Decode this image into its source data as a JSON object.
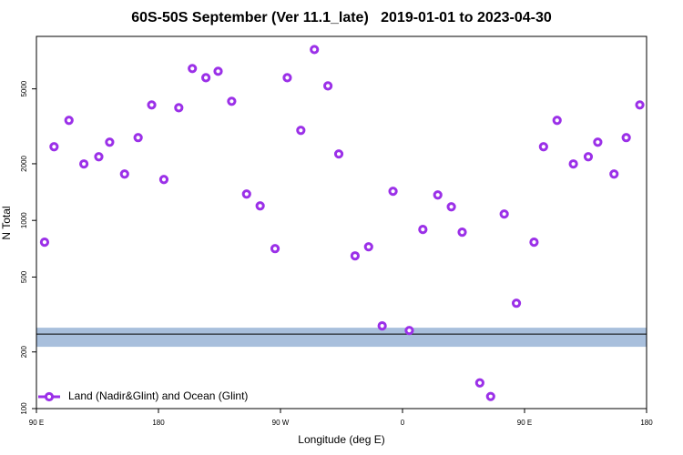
{
  "chart_data": {
    "type": "scatter",
    "title": "60S-50S September (Ver 11.1_late)   2019-01-01 to 2023-04-30",
    "x_label": "Longitude (deg E)",
    "y_label": "N Total",
    "log_y": true,
    "xlim": [
      90,
      540
    ],
    "xticks": [
      {
        "value": 90,
        "label": "90 E"
      },
      {
        "value": 180,
        "label": "180"
      },
      {
        "value": 270,
        "label": "90 W"
      },
      {
        "value": 360,
        "label": "0"
      },
      {
        "value": 450,
        "label": "90 E"
      },
      {
        "value": 540,
        "label": "180"
      }
    ],
    "ylim": [
      100,
      9500
    ],
    "yticks": [
      100,
      200,
      500,
      1000,
      2000,
      5000
    ],
    "band": [
      213,
      269
    ],
    "reference_line": 249,
    "band_color": "#a8bfdc",
    "legend_position": "lower left",
    "series": [
      {
        "name": "Land (Nadir&Glint) and Ocean (Glint)",
        "color": "#9b30e8",
        "x": [
          96,
          103,
          114,
          125,
          136,
          144,
          155,
          165,
          175,
          184,
          195,
          205,
          215,
          224,
          234,
          245,
          255,
          266,
          275,
          285,
          295,
          305,
          313,
          325,
          335,
          345,
          353,
          365,
          375,
          386,
          396,
          404,
          417,
          425,
          435,
          444,
          457,
          464,
          474,
          486,
          497,
          504,
          516,
          525,
          535
        ],
        "values": [
          766,
          2463,
          3400,
          1995,
          2178,
          2603,
          1763,
          2754,
          4108,
          1650,
          3971,
          6412,
          5730,
          6200,
          4295,
          1380,
          1194,
          708,
          5730,
          3008,
          8090,
          5186,
          2254,
          648,
          724,
          275,
          1428,
          260,
          895,
          1365,
          1181,
          866,
          137,
          116,
          1081,
          363,
          766,
          2463,
          3400,
          1995,
          2178,
          2603,
          1763,
          2754,
          4108
        ]
      }
    ]
  }
}
